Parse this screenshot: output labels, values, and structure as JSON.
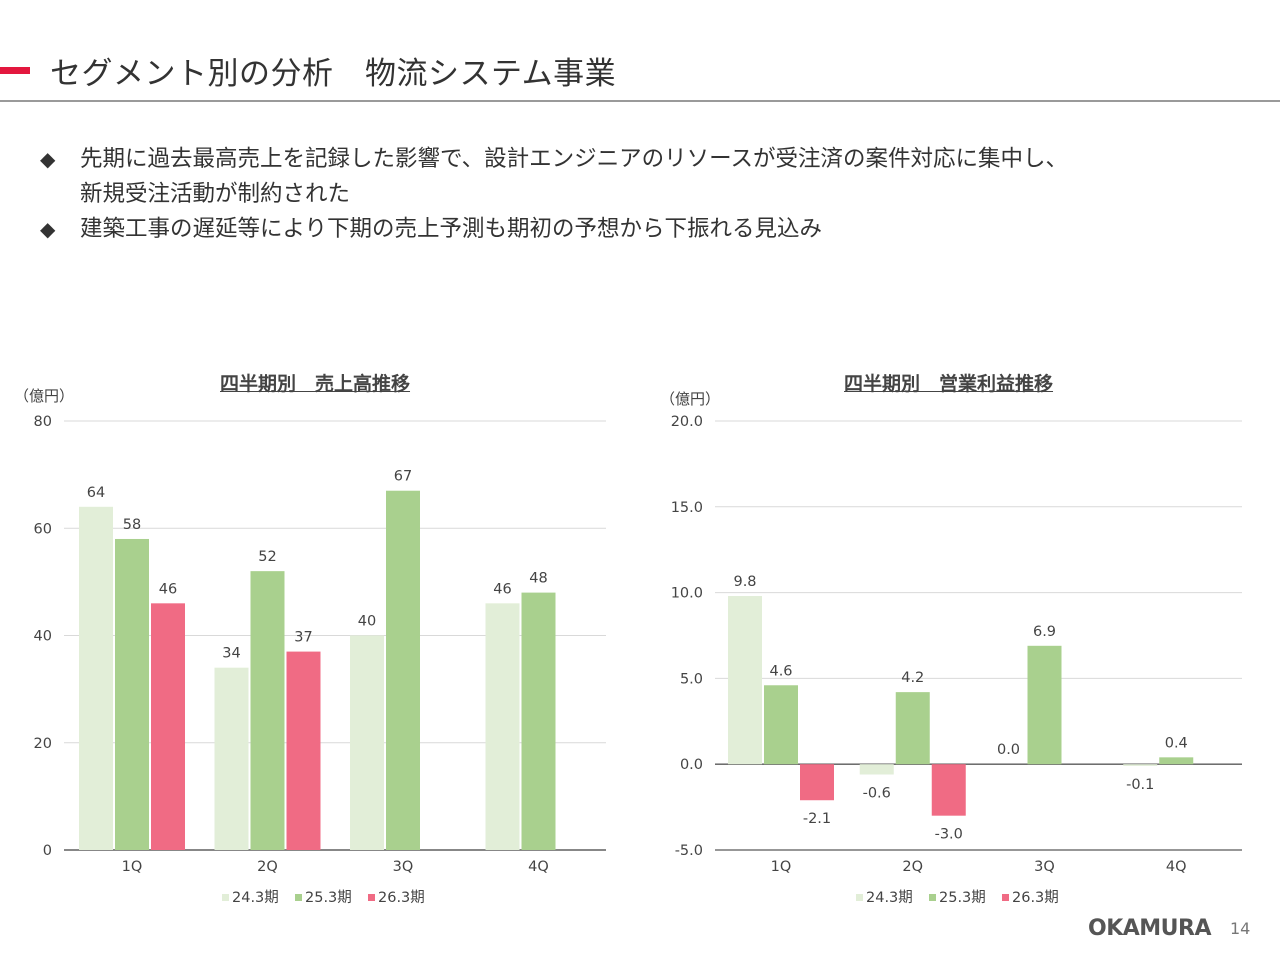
{
  "header": {
    "title": "セグメント別の分析　物流システム事業"
  },
  "bullets": {
    "mark": "◆",
    "items": [
      "先期に過去最高売上を記録した影響で、設計エンジニアのリソースが受注済の案件対応に集中し、",
      "新規受注活動が制約された",
      "建築工事の遅延等により下期の売上予測も期初の予想から下振れる見込み"
    ]
  },
  "colors": {
    "s24": "#e2eed8",
    "s25": "#a9d08e",
    "s26": "#f06b84",
    "grid": "#d9d9d9",
    "axis": "#595959"
  },
  "chart_data": [
    {
      "type": "bar",
      "title": "四半期別　売上高推移",
      "unit": "（億円）",
      "categories": [
        "1Q",
        "2Q",
        "3Q",
        "4Q"
      ],
      "ylim": [
        0,
        80
      ],
      "yticks": [
        "0",
        "20",
        "40",
        "60",
        "80"
      ],
      "series": [
        {
          "name": "24.3期",
          "values": [
            64,
            34,
            40,
            46
          ],
          "labels": [
            "64",
            "34",
            "40",
            "46"
          ]
        },
        {
          "name": "25.3期",
          "values": [
            58,
            52,
            67,
            48
          ],
          "labels": [
            "58",
            "52",
            "67",
            "48"
          ]
        },
        {
          "name": "26.3期",
          "values": [
            46,
            37,
            null,
            null
          ],
          "labels": [
            "46",
            "37",
            "",
            ""
          ]
        }
      ],
      "legend": "bottom"
    },
    {
      "type": "bar",
      "title": "四半期別　営業利益推移",
      "unit": "（億円）",
      "categories": [
        "1Q",
        "2Q",
        "3Q",
        "4Q"
      ],
      "ylim": [
        -5,
        20
      ],
      "yticks": [
        "-5.0",
        "0.0",
        "5.0",
        "10.0",
        "15.0",
        "20.0"
      ],
      "series": [
        {
          "name": "24.3期",
          "values": [
            9.8,
            -0.6,
            0.0,
            -0.1
          ],
          "labels": [
            "9.8",
            "-0.6",
            "0.0",
            "-0.1"
          ]
        },
        {
          "name": "25.3期",
          "values": [
            4.6,
            4.2,
            6.9,
            0.4
          ],
          "labels": [
            "4.6",
            "4.2",
            "6.9",
            "0.4"
          ]
        },
        {
          "name": "26.3期",
          "values": [
            -2.1,
            -3.0,
            null,
            null
          ],
          "labels": [
            "-2.1",
            "-3.0",
            "",
            ""
          ]
        }
      ],
      "legend": "bottom"
    }
  ],
  "footer": {
    "logo": "OKAMURA",
    "page": "14"
  }
}
